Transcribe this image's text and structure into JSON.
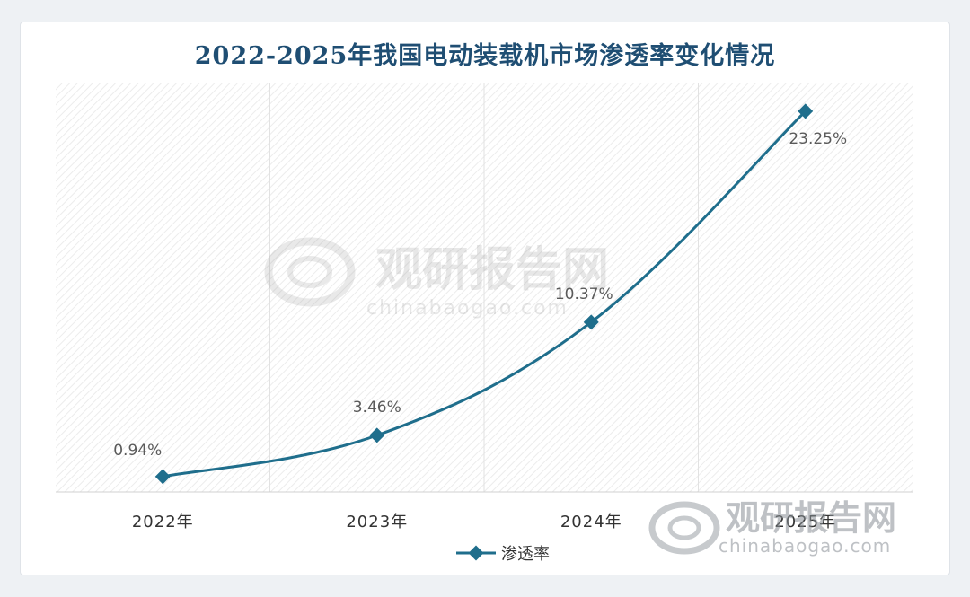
{
  "chart_data": {
    "type": "line",
    "title": "2022-2025年我国电动装载机市场渗透率变化情况",
    "categories": [
      "2022年",
      "2023年",
      "2024年",
      "2025年"
    ],
    "series": [
      {
        "name": "渗透率",
        "values": [
          0.94,
          3.46,
          10.37,
          23.25
        ],
        "color": "#1f6e8c"
      }
    ],
    "data_labels": [
      "0.94%",
      "3.46%",
      "10.37%",
      "23.25%"
    ],
    "ylim": [
      0,
      25
    ],
    "xlabel": "",
    "ylabel": "",
    "grid": true,
    "legend": "bottom"
  },
  "watermark": {
    "brand": "观研报告网",
    "site": "chinabaogao.com"
  }
}
